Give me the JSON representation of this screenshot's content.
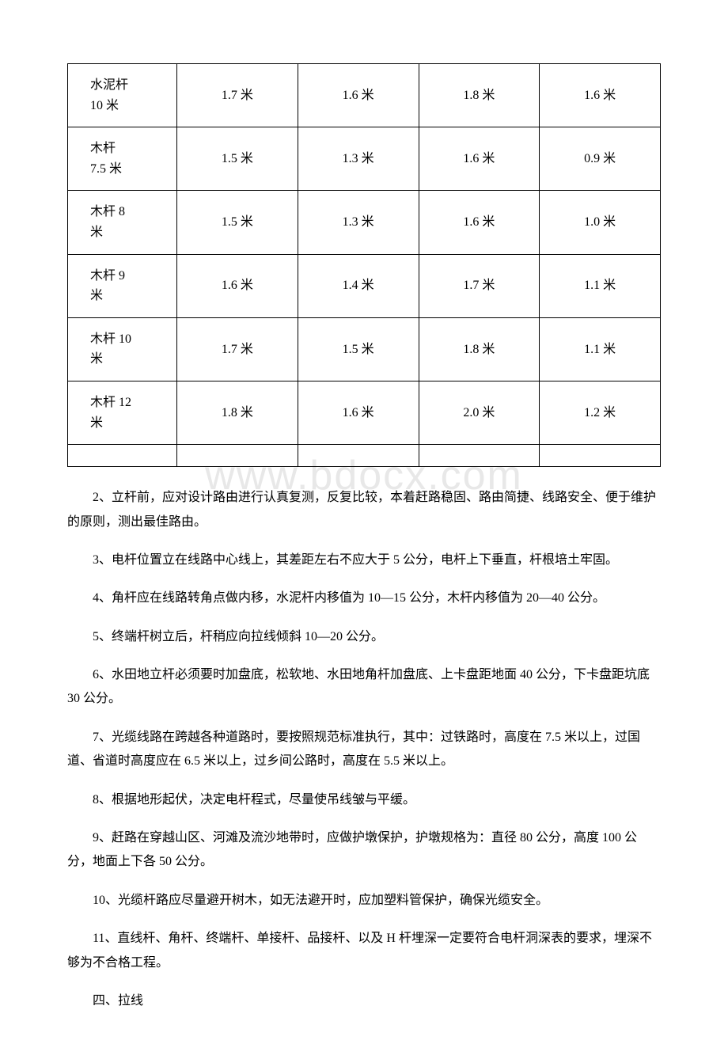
{
  "watermark": "www.bdocx.com",
  "table": {
    "rows": [
      {
        "label": "水泥杆\n10 米",
        "c1": "1.7 米",
        "c2": "1.6 米",
        "c3": "1.8 米",
        "c4": "1.6 米"
      },
      {
        "label": "木杆\n7.5 米",
        "c1": "1.5 米",
        "c2": "1.3 米",
        "c3": "1.6 米",
        "c4": "0.9 米"
      },
      {
        "label": "木杆 8\n米",
        "c1": "1.5 米",
        "c2": "1.3 米",
        "c3": "1.6 米",
        "c4": "1.0 米"
      },
      {
        "label": "木杆 9\n米",
        "c1": "1.6 米",
        "c2": "1.4 米",
        "c3": "1.7 米",
        "c4": "1.1 米"
      },
      {
        "label": "木杆 10\n米",
        "c1": "1.7 米",
        "c2": "1.5 米",
        "c3": "1.8 米",
        "c4": "1.1 米"
      },
      {
        "label": "木杆 12\n米",
        "c1": "1.8 米",
        "c2": "1.6 米",
        "c3": "2.0 米",
        "c4": "1.2 米"
      }
    ],
    "column_widths": [
      "138px",
      "153px",
      "153px",
      "153px",
      "153px"
    ],
    "border_color": "#000000",
    "font_size": 16
  },
  "paragraphs": {
    "p2": "2、立杆前，应对设计路由进行认真复测，反复比较，本着赶路稳固、路由简捷、线路安全、便于维护的原则，测出最佳路由。",
    "p3": "3、电杆位置立在线路中心线上，其差距左右不应大于 5 公分，电杆上下垂直，杆根培土牢固。",
    "p4": "4、角杆应在线路转角点做内移，水泥杆内移值为 10—15 公分，木杆内移值为 20—40 公分。",
    "p5": "5、终端杆树立后，杆稍应向拉线倾斜 10—20 公分。",
    "p6": "6、水田地立杆必须要时加盘底，松软地、水田地角杆加盘底、上卡盘距地面 40 公分，下卡盘距坑底 30 公分。",
    "p7": "7、光缆线路在跨越各种道路时，要按照规范标准执行，其中：过铁路时，高度在 7.5 米以上，过国道、省道时高度应在 6.5 米以上，过乡间公路时，高度在 5.5 米以上。",
    "p8": "8、根据地形起伏，决定电杆程式，尽量使吊线皱与平缓。",
    "p9": "9、赶路在穿越山区、河滩及流沙地带时，应做护墩保护，护墩规格为：直径 80 公分，高度 100 公分，地面上下各 50 公分。",
    "p10": "10、光缆杆路应尽量避开树木，如无法避开时，应加塑料管保护，确保光缆安全。",
    "p11": "11、直线杆、角杆、终端杆、单接杆、品接杆、以及 H 杆埋深一定要符合电杆洞深表的要求，埋深不够为不合格工程。",
    "section4": "四、拉线"
  },
  "styling": {
    "background_color": "#ffffff",
    "text_color": "#000000",
    "font_family": "SimSun",
    "body_font_size": 16,
    "watermark_color": "#e8e8e8",
    "watermark_font_size": 52
  }
}
